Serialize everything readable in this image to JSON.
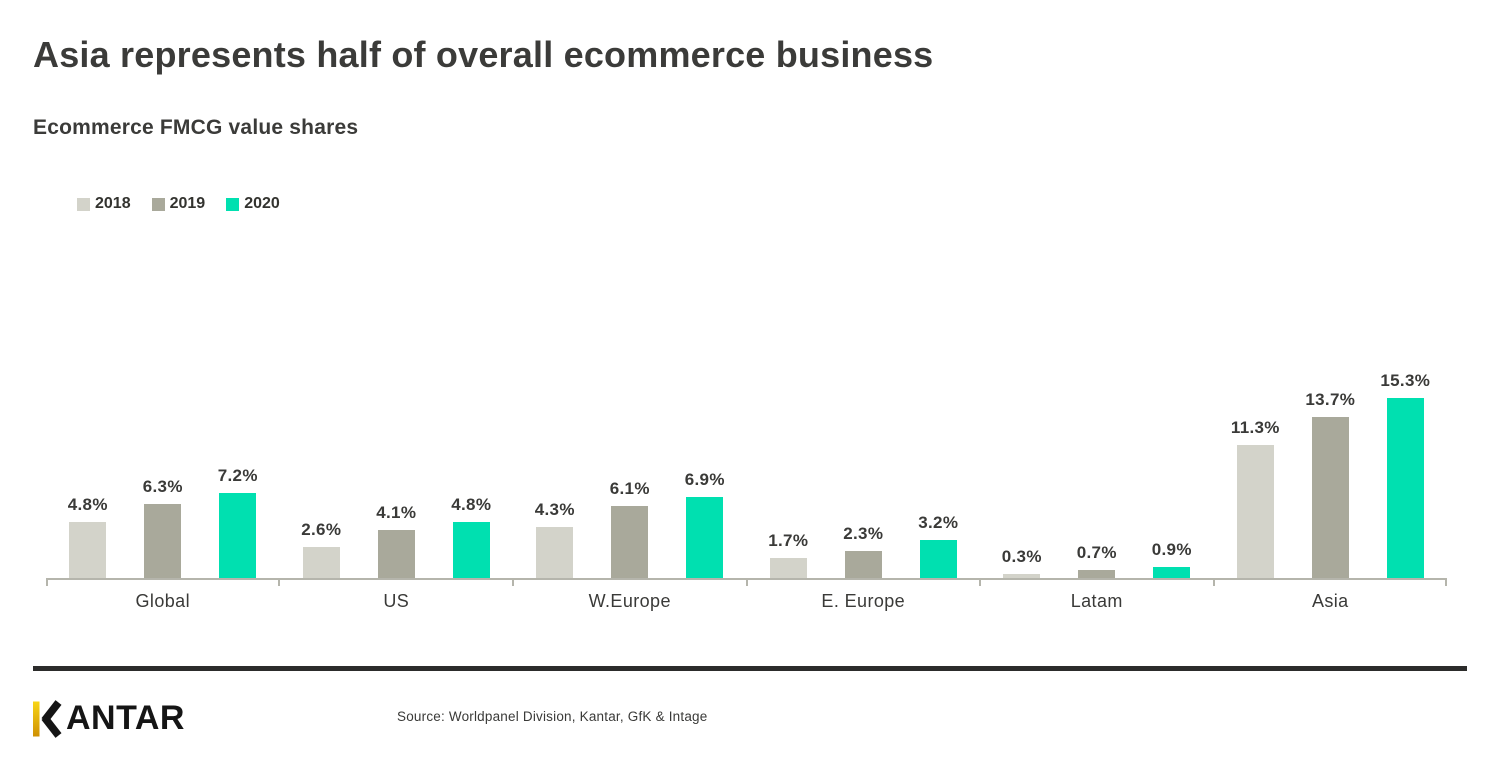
{
  "header": {
    "title": "Asia represents half of overall ecommerce business",
    "subtitle": "Ecommerce FMCG value shares"
  },
  "chart_data": {
    "type": "bar",
    "title": "Asia represents half of overall ecommerce business",
    "subtitle": "Ecommerce FMCG value shares",
    "categories": [
      "Global",
      "US",
      "W.Europe",
      "E. Europe",
      "Latam",
      "Asia"
    ],
    "series": [
      {
        "name": "2018",
        "color": "#d3d3ca",
        "values": [
          4.8,
          2.6,
          4.3,
          1.7,
          0.3,
          11.3
        ]
      },
      {
        "name": "2019",
        "color": "#a9a99b",
        "values": [
          6.3,
          4.1,
          6.1,
          2.3,
          0.7,
          13.7
        ]
      },
      {
        "name": "2020",
        "color": "#00e0b0",
        "values": [
          7.2,
          4.8,
          6.9,
          3.2,
          0.9,
          15.3
        ]
      }
    ],
    "value_label_suffix": "%",
    "ylim": [
      0,
      15.3
    ],
    "grid": false,
    "legend_position": "top-left",
    "xlabel": "",
    "ylabel": ""
  },
  "colors": {
    "accent": "#00e0b0",
    "series_2018": "#d3d3ca",
    "series_2019": "#a9a99b",
    "axis": "#b5b5ac",
    "text": "#3b3b39",
    "footer_rule": "#2c2c2b",
    "logo_gold_top": "#f8d516",
    "logo_gold_bottom": "#cf9004"
  },
  "footer": {
    "logo_text": "ANTAR",
    "logo_name": "KANTAR",
    "source": "Source: Worldpanel Division, Kantar, GfK & Intage"
  }
}
